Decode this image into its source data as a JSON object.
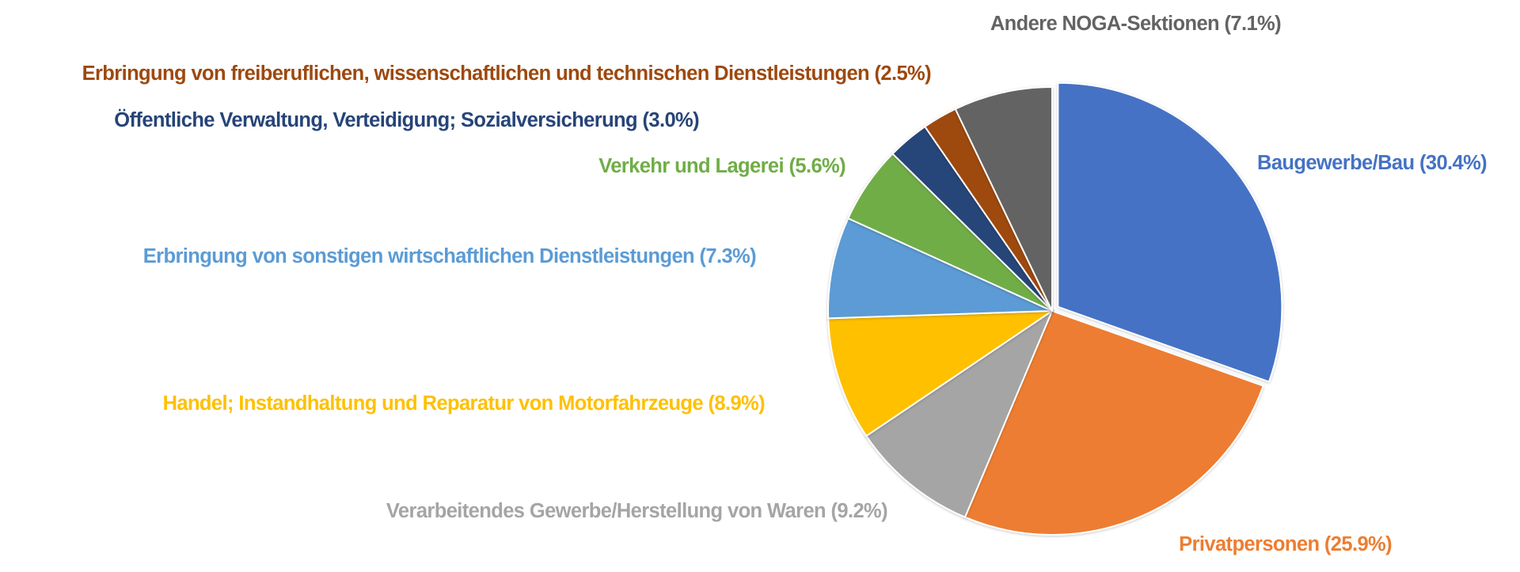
{
  "chart_data": {
    "type": "pie",
    "title": "",
    "start_angle_deg": 0,
    "direction": "clockwise",
    "unit": "%",
    "slices": [
      {
        "name": "Baugewerbe/Bau",
        "value": 30.4,
        "label": "Baugewerbe/Bau (30.4%)",
        "color": "#4472C4",
        "exploded": true
      },
      {
        "name": "Privatpersonen",
        "value": 25.9,
        "label": "Privatpersonen (25.9%)",
        "color": "#ED7D31",
        "exploded": false
      },
      {
        "name": "Verarbeitendes Gewerbe/Herstellung von Waren",
        "value": 9.2,
        "label": "Verarbeitendes Gewerbe/Herstellung von Waren (9.2%)",
        "color": "#A5A5A5",
        "exploded": false
      },
      {
        "name": "Handel; Instandhaltung und Reparatur von Motorfahrzeuge",
        "value": 8.9,
        "label": "Handel; Instandhaltung und Reparatur von Motorfahrzeuge (8.9%)",
        "color": "#FFC000",
        "exploded": false
      },
      {
        "name": "Erbringung von sonstigen wirtschaftlichen Dienstleistungen",
        "value": 7.3,
        "label": "Erbringung von sonstigen wirtschaftlichen Dienstleistungen (7.3%)",
        "color": "#5B9BD5",
        "exploded": false
      },
      {
        "name": "Verkehr und Lagerei",
        "value": 5.6,
        "label": "Verkehr und Lagerei (5.6%)",
        "color": "#70AD47",
        "exploded": false
      },
      {
        "name": "Öffentliche Verwaltung, Verteidigung; Sozialversicherung",
        "value": 3.0,
        "label": "Öffentliche Verwaltung, Verteidigung; Sozialversicherung (3.0%)",
        "color": "#264478",
        "exploded": false
      },
      {
        "name": "Erbringung von freiberuflichen, wissenschaftlichen und technischen Dienstleistungen",
        "value": 2.5,
        "label": "Erbringung von freiberuflichen, wissenschaftlichen und technischen Dienstleistungen (2.5%)",
        "color": "#9E480E",
        "exploded": false
      },
      {
        "name": "Andere NOGA-Sektionen",
        "value": 7.1,
        "label": "Andere NOGA-Sektionen (7.1%)",
        "color": "#636363",
        "exploded": false
      }
    ],
    "legend": "none",
    "data_labels": "outside, colored by slice"
  }
}
